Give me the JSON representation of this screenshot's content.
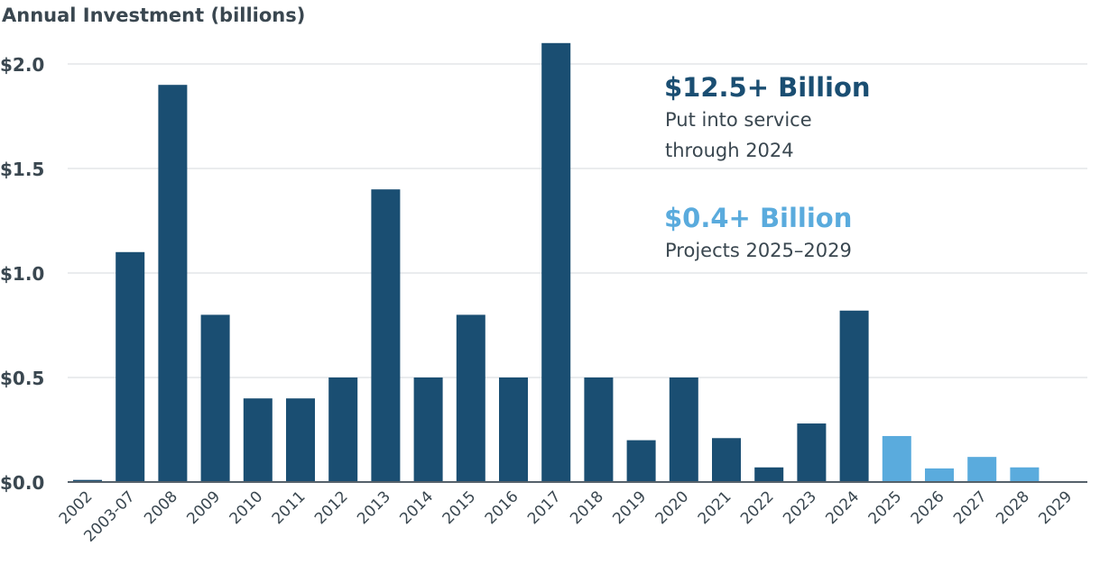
{
  "chart_data": {
    "type": "bar",
    "title": "Annual Investment (billions)",
    "xlabel": "",
    "ylabel": "",
    "ylim": [
      0,
      2.0
    ],
    "yticks": [
      "$0.0",
      "$0.5",
      "$1.0",
      "$1.5",
      "$2.0"
    ],
    "ytick_values": [
      0,
      0.5,
      1.0,
      1.5,
      2.0
    ],
    "grid": true,
    "categories": [
      "2002",
      "2003-07",
      "2008",
      "2009",
      "2010",
      "2011",
      "2012",
      "2013",
      "2014",
      "2015",
      "2016",
      "2017",
      "2018",
      "2019",
      "2020",
      "2021",
      "2022",
      "2023",
      "2024",
      "2025",
      "2026",
      "2027",
      "2028",
      "2029"
    ],
    "values": [
      0.01,
      1.1,
      1.9,
      0.8,
      0.4,
      0.4,
      0.5,
      1.4,
      0.5,
      0.8,
      0.5,
      2.1,
      0.5,
      0.2,
      0.5,
      0.21,
      0.07,
      0.28,
      0.82,
      0.22,
      0.065,
      0.12,
      0.07,
      0
    ],
    "bar_groups": [
      "in-service",
      "in-service",
      "in-service",
      "in-service",
      "in-service",
      "in-service",
      "in-service",
      "in-service",
      "in-service",
      "in-service",
      "in-service",
      "in-service",
      "in-service",
      "in-service",
      "in-service",
      "in-service",
      "in-service",
      "in-service",
      "in-service",
      "projected",
      "projected",
      "projected",
      "projected",
      "projected"
    ],
    "colors": {
      "in-service": "#1a4e72",
      "projected": "#5aabdd",
      "text": "#3a4750",
      "grid": "#e3e6e8"
    },
    "annotations": [
      {
        "headline": "$12.5+ Billion",
        "lines": [
          "Put into service",
          "through 2024"
        ],
        "color": "#1a4e72"
      },
      {
        "headline": "$0.4+ Billion",
        "lines": [
          "Projects 2025–2029"
        ],
        "color": "#5aabdd"
      }
    ]
  }
}
